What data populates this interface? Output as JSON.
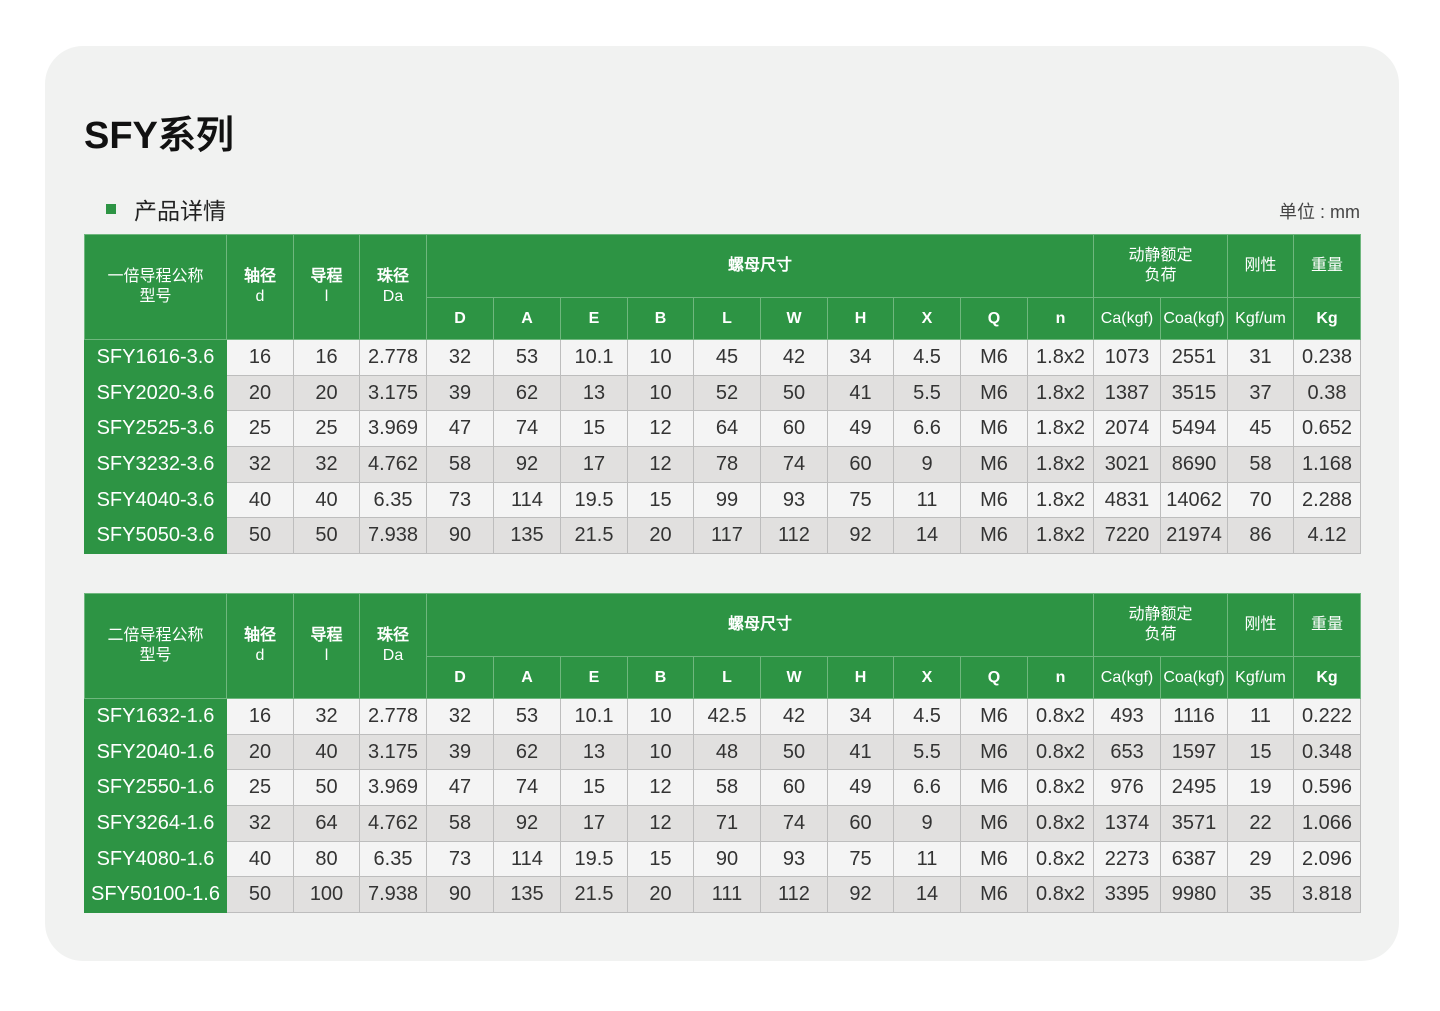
{
  "title": "SFY系列",
  "subtitle": "产品详情",
  "unit": "单位 : mm",
  "colors": {
    "accent": "#2d9444",
    "card": "#f1f2f1"
  },
  "tables": [
    {
      "model_header": "一倍导程公称型号",
      "shaft": "轴径",
      "shaft_sym": "d",
      "lead": "导程",
      "lead_sym": "l",
      "ball": "珠径",
      "ball_sym": "Da",
      "nut": "螺母尺寸",
      "load": "动静额定负荷",
      "rigidity": "刚性",
      "weight": "重量",
      "subcols": [
        "D",
        "A",
        "E",
        "B",
        "L",
        "W",
        "H",
        "X",
        "Q",
        "n",
        "Ca(kgf)",
        "Coa(kgf)",
        "Kgf/um",
        "Kg"
      ],
      "rows": [
        [
          "SFY1616-3.6",
          "16",
          "16",
          "2.778",
          "32",
          "53",
          "10.1",
          "10",
          "45",
          "42",
          "34",
          "4.5",
          "M6",
          "1.8x2",
          "1073",
          "2551",
          "31",
          "0.238"
        ],
        [
          "SFY2020-3.6",
          "20",
          "20",
          "3.175",
          "39",
          "62",
          "13",
          "10",
          "52",
          "50",
          "41",
          "5.5",
          "M6",
          "1.8x2",
          "1387",
          "3515",
          "37",
          "0.38"
        ],
        [
          "SFY2525-3.6",
          "25",
          "25",
          "3.969",
          "47",
          "74",
          "15",
          "12",
          "64",
          "60",
          "49",
          "6.6",
          "M6",
          "1.8x2",
          "2074",
          "5494",
          "45",
          "0.652"
        ],
        [
          "SFY3232-3.6",
          "32",
          "32",
          "4.762",
          "58",
          "92",
          "17",
          "12",
          "78",
          "74",
          "60",
          "9",
          "M6",
          "1.8x2",
          "3021",
          "8690",
          "58",
          "1.168"
        ],
        [
          "SFY4040-3.6",
          "40",
          "40",
          "6.35",
          "73",
          "114",
          "19.5",
          "15",
          "99",
          "93",
          "75",
          "11",
          "M6",
          "1.8x2",
          "4831",
          "14062",
          "70",
          "2.288"
        ],
        [
          "SFY5050-3.6",
          "50",
          "50",
          "7.938",
          "90",
          "135",
          "21.5",
          "20",
          "117",
          "112",
          "92",
          "14",
          "M6",
          "1.8x2",
          "7220",
          "21974",
          "86",
          "4.12"
        ]
      ]
    },
    {
      "model_header": "二倍导程公称型号",
      "shaft": "轴径",
      "shaft_sym": "d",
      "lead": "导程",
      "lead_sym": "l",
      "ball": "珠径",
      "ball_sym": "Da",
      "nut": "螺母尺寸",
      "load": "动静额定负荷",
      "rigidity": "刚性",
      "weight": "重量",
      "subcols": [
        "D",
        "A",
        "E",
        "B",
        "L",
        "W",
        "H",
        "X",
        "Q",
        "n",
        "Ca(kgf)",
        "Coa(kgf)",
        "Kgf/um",
        "Kg"
      ],
      "rows": [
        [
          "SFY1632-1.6",
          "16",
          "32",
          "2.778",
          "32",
          "53",
          "10.1",
          "10",
          "42.5",
          "42",
          "34",
          "4.5",
          "M6",
          "0.8x2",
          "493",
          "1116",
          "11",
          "0.222"
        ],
        [
          "SFY2040-1.6",
          "20",
          "40",
          "3.175",
          "39",
          "62",
          "13",
          "10",
          "48",
          "50",
          "41",
          "5.5",
          "M6",
          "0.8x2",
          "653",
          "1597",
          "15",
          "0.348"
        ],
        [
          "SFY2550-1.6",
          "25",
          "50",
          "3.969",
          "47",
          "74",
          "15",
          "12",
          "58",
          "60",
          "49",
          "6.6",
          "M6",
          "0.8x2",
          "976",
          "2495",
          "19",
          "0.596"
        ],
        [
          "SFY3264-1.6",
          "32",
          "64",
          "4.762",
          "58",
          "92",
          "17",
          "12",
          "71",
          "74",
          "60",
          "9",
          "M6",
          "0.8x2",
          "1374",
          "3571",
          "22",
          "1.066"
        ],
        [
          "SFY4080-1.6",
          "40",
          "80",
          "6.35",
          "73",
          "114",
          "19.5",
          "15",
          "90",
          "93",
          "75",
          "11",
          "M6",
          "0.8x2",
          "2273",
          "6387",
          "29",
          "2.096"
        ],
        [
          "SFY50100-1.6",
          "50",
          "100",
          "7.938",
          "90",
          "135",
          "21.5",
          "20",
          "111",
          "112",
          "92",
          "14",
          "M6",
          "0.8x2",
          "3395",
          "9980",
          "35",
          "3.818"
        ]
      ]
    }
  ]
}
